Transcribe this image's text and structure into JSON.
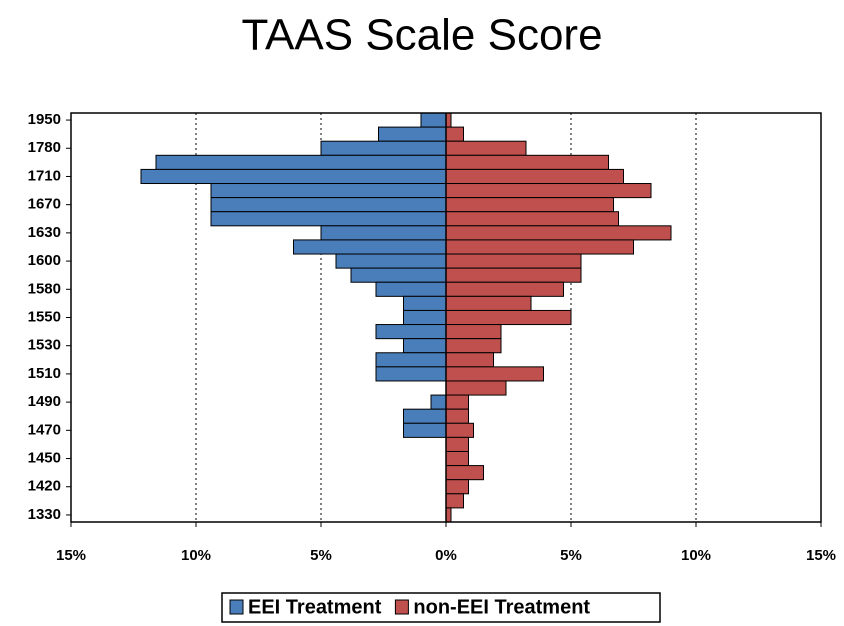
{
  "chart_data": {
    "type": "pyramid",
    "title": "TAAS Scale Score",
    "categories": [
      "1950",
      null,
      "1780",
      null,
      "1710",
      null,
      "1670",
      null,
      "1630",
      null,
      "1600",
      null,
      "1580",
      null,
      "1550",
      null,
      "1530",
      null,
      "1510",
      null,
      "1490",
      null,
      "1470",
      null,
      "1450",
      null,
      "1420",
      null,
      "1330"
    ],
    "series": [
      {
        "name": "EEI Treatment",
        "color": "#4a7ebb",
        "values": [
          -1.0,
          -2.7,
          -5.0,
          -11.6,
          -12.2,
          -9.4,
          -9.4,
          -9.4,
          -5.0,
          -6.1,
          -4.4,
          -3.8,
          -2.8,
          -1.7,
          -1.7,
          -2.8,
          -1.7,
          -2.8,
          -2.8,
          0,
          -0.6,
          -1.7,
          -1.7,
          0,
          0,
          0,
          0,
          0,
          0
        ]
      },
      {
        "name": "non-EEI Treatment",
        "color": "#c0504d",
        "values": [
          0.2,
          0.7,
          3.2,
          6.5,
          7.1,
          8.2,
          6.7,
          6.9,
          9.0,
          7.5,
          5.4,
          5.4,
          4.7,
          3.4,
          5.0,
          2.2,
          2.2,
          1.9,
          3.9,
          2.4,
          0.9,
          0.9,
          1.1,
          0.9,
          0.9,
          1.5,
          0.9,
          0.7,
          0.2
        ]
      }
    ],
    "xlim": [
      -15,
      15
    ],
    "xticks": [
      {
        "value": -15,
        "label": "15%"
      },
      {
        "value": -10,
        "label": "10%"
      },
      {
        "value": -5,
        "label": "5%"
      },
      {
        "value": 0,
        "label": "0%"
      },
      {
        "value": 5,
        "label": "5%"
      },
      {
        "value": 10,
        "label": "10%"
      },
      {
        "value": 15,
        "label": "15%"
      }
    ],
    "grid": true
  }
}
